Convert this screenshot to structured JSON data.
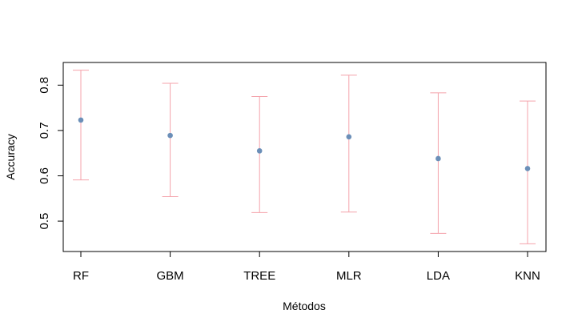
{
  "chart_data": {
    "type": "scatter",
    "xlabel": "Métodos",
    "ylabel": "Accuracy",
    "categories": [
      "RF",
      "GBM",
      "TREE",
      "MLR",
      "LDA",
      "KNN"
    ],
    "series": [
      {
        "values": [
          0.723,
          0.689,
          0.655,
          0.686,
          0.638,
          0.616
        ],
        "lower": [
          0.591,
          0.554,
          0.519,
          0.52,
          0.473,
          0.45
        ],
        "upper": [
          0.833,
          0.804,
          0.775,
          0.822,
          0.783,
          0.765
        ]
      }
    ],
    "yticks": [
      "0.5",
      "0.6",
      "0.7",
      "0.8"
    ],
    "ylim": [
      0.433,
      0.85
    ],
    "grid": false,
    "colors": {
      "point": "#6b8fb8",
      "errorbar": "#f4a3ab",
      "axis": "#000000"
    }
  }
}
